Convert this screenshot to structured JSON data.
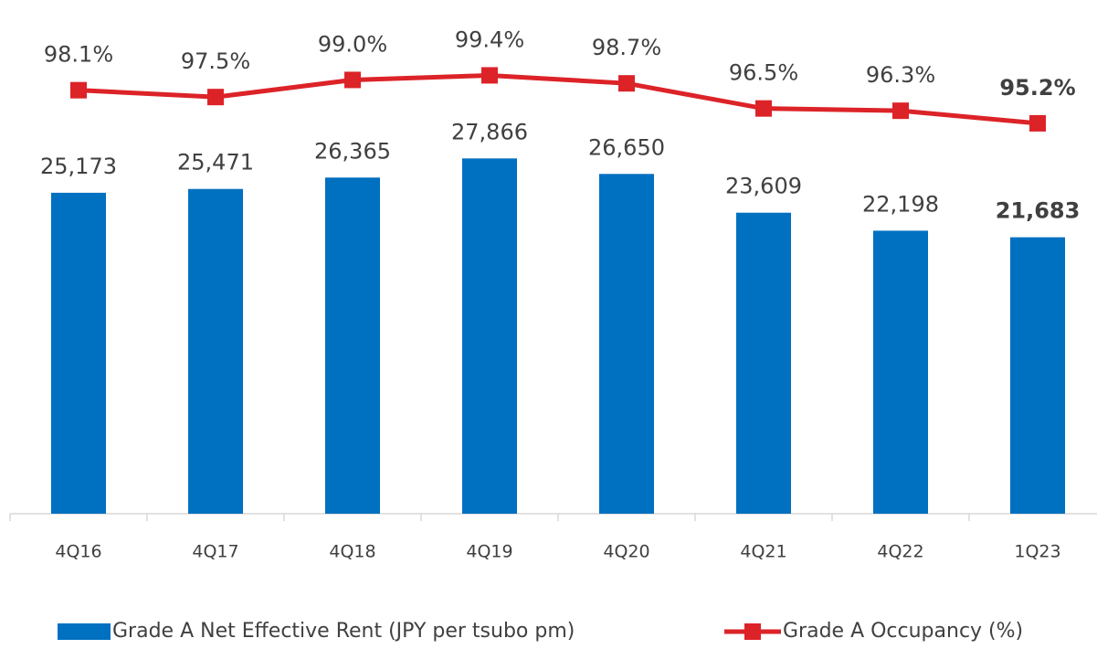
{
  "chart_data": {
    "type": "bar+line",
    "categories": [
      "4Q16",
      "4Q17",
      "4Q18",
      "4Q19",
      "4Q20",
      "4Q21",
      "4Q22",
      "1Q23"
    ],
    "series": [
      {
        "name": "Grade A Net Effective Rent (JPY per tsubo pm)",
        "type": "bar",
        "color": "#0070c0",
        "values": [
          25173,
          25471,
          26365,
          27866,
          26650,
          23609,
          22198,
          21683
        ],
        "value_labels": [
          "25,173",
          "25,471",
          "26,365",
          "27,866",
          "26,650",
          "23,609",
          "22,198",
          "21,683"
        ]
      },
      {
        "name": "Grade A Occupancy (%)",
        "type": "line",
        "axis": "y2",
        "color": "#dc2328",
        "values": [
          98.1,
          97.5,
          99.0,
          99.4,
          98.7,
          96.5,
          96.3,
          95.2
        ],
        "value_labels": [
          "98.1%",
          "97.5%",
          "99.0%",
          "99.4%",
          "98.7%",
          "96.5%",
          "96.3%",
          "95.2%"
        ]
      }
    ],
    "ylim": [
      0,
      38500
    ],
    "y2lim": [
      61,
      104
    ],
    "legend": "bottom"
  }
}
